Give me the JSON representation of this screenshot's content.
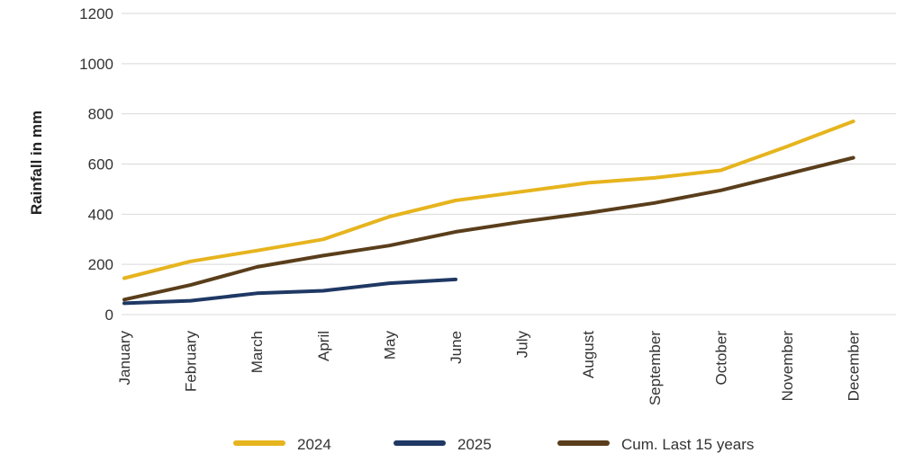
{
  "chart_data": {
    "type": "line",
    "title": "",
    "xlabel": "",
    "ylabel": "Rainfall in mm",
    "categories": [
      "January",
      "February",
      "March",
      "April",
      "May",
      "June",
      "July",
      "August",
      "September",
      "October",
      "November",
      "December"
    ],
    "ylim": [
      0,
      1200
    ],
    "yticks": [
      0,
      200,
      400,
      600,
      800,
      1000,
      1200
    ],
    "grid": "horizontal",
    "legend_position": "bottom",
    "series": [
      {
        "name": "2024",
        "color": "#E6B41E",
        "values": [
          145,
          212,
          255,
          300,
          390,
          455,
          490,
          525,
          545,
          575,
          670,
          770
        ]
      },
      {
        "name": "2025",
        "color": "#1F3864",
        "values": [
          45,
          55,
          85,
          95,
          125,
          140,
          null,
          null,
          null,
          null,
          null,
          null
        ]
      },
      {
        "name": "Cum. Last 15 years",
        "color": "#5A3E1B",
        "values": [
          60,
          118,
          190,
          235,
          275,
          330,
          370,
          405,
          445,
          495,
          560,
          625
        ]
      }
    ]
  }
}
